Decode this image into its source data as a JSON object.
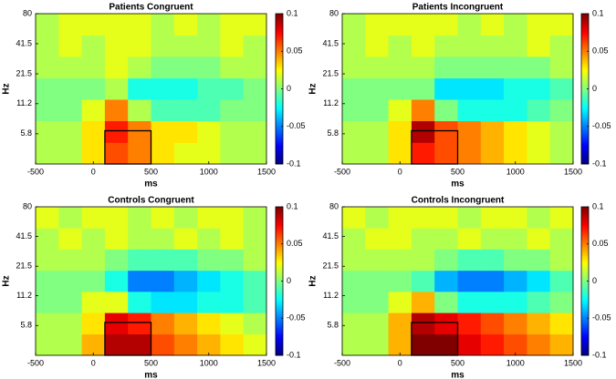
{
  "chart_data": [
    {
      "type": "heatmap",
      "title": "Patients Congruent",
      "xlabel": "ms",
      "ylabel": "Hz",
      "xlim": [
        -500,
        1500
      ],
      "xticks": [
        -500,
        0,
        500,
        1000,
        1500
      ],
      "ylim": [
        3,
        80
      ],
      "yticks": [
        5.8,
        11.2,
        21.5,
        41.5,
        80
      ],
      "yscale": "log",
      "xbins": [
        -500,
        -300,
        -100,
        100,
        300,
        500,
        700,
        900,
        1100,
        1300,
        1500
      ],
      "ybins": [
        3,
        4.8,
        7.7,
        12.3,
        19.6,
        31.4,
        50,
        80
      ],
      "z": [
        [
          0.01,
          0.01,
          0.03,
          0.06,
          0.05,
          0.03,
          0.02,
          0.02,
          0.01,
          0.01
        ],
        [
          0.01,
          0.01,
          0.03,
          0.07,
          0.05,
          0.03,
          0.03,
          0.02,
          0.01,
          0.01
        ],
        [
          0,
          0,
          0.02,
          0.05,
          0.01,
          -0.01,
          -0.01,
          -0.01,
          0,
          0
        ],
        [
          0,
          0,
          0,
          0.01,
          -0.02,
          -0.02,
          -0.02,
          -0.01,
          -0.01,
          0
        ],
        [
          0.01,
          0.01,
          0.01,
          0.02,
          0.01,
          0,
          0,
          0,
          0.01,
          0.01
        ],
        [
          0.01,
          0.02,
          0.01,
          0.02,
          0.02,
          0.01,
          0.01,
          0.01,
          0.02,
          0.01
        ],
        [
          0.01,
          0.02,
          0.02,
          0.02,
          0.02,
          0.01,
          0.02,
          0.01,
          0.02,
          0.02
        ]
      ],
      "clim": [
        -0.1,
        0.1
      ],
      "cticks": [
        -0.1,
        -0.05,
        0,
        0.05,
        0.1
      ],
      "colormap": "jet",
      "box": {
        "x": [
          100,
          500
        ],
        "y": [
          3,
          6.2
        ]
      },
      "box_color": "#000000"
    },
    {
      "type": "heatmap",
      "title": "Patients Incongruent",
      "xlabel": "ms",
      "ylabel": "Hz",
      "xlim": [
        -500,
        1500
      ],
      "xticks": [
        -500,
        0,
        500,
        1000,
        1500
      ],
      "ylim": [
        3,
        80
      ],
      "yticks": [
        5.8,
        11.2,
        21.5,
        41.5,
        80
      ],
      "yscale": "log",
      "xbins": [
        -500,
        -300,
        -100,
        100,
        300,
        500,
        700,
        900,
        1100,
        1300,
        1500
      ],
      "ybins": [
        3,
        4.8,
        7.7,
        12.3,
        19.6,
        31.4,
        50,
        80
      ],
      "z": [
        [
          0.01,
          0.01,
          0.03,
          0.07,
          0.06,
          0.05,
          0.04,
          0.03,
          0.02,
          0.01
        ],
        [
          0.01,
          0.01,
          0.03,
          0.09,
          0.06,
          0.05,
          0.04,
          0.03,
          0.02,
          0.01
        ],
        [
          0,
          0,
          0.02,
          0.05,
          0,
          -0.02,
          -0.02,
          -0.02,
          -0.01,
          0
        ],
        [
          0,
          0,
          0,
          0,
          -0.03,
          -0.03,
          -0.03,
          -0.02,
          -0.02,
          -0.01
        ],
        [
          0.01,
          0.01,
          0.01,
          0.01,
          0,
          0,
          0,
          0,
          0,
          0.01
        ],
        [
          0.01,
          0.02,
          0.01,
          0.02,
          0.01,
          0.01,
          0.01,
          0.01,
          0.02,
          0.01
        ],
        [
          0.01,
          0.02,
          0.02,
          0.02,
          0.02,
          0.01,
          0.02,
          0.01,
          0.02,
          0.02
        ]
      ],
      "clim": [
        -0.1,
        0.1
      ],
      "cticks": [
        -0.1,
        -0.05,
        0,
        0.05,
        0.1
      ],
      "colormap": "jet",
      "box": {
        "x": [
          100,
          500
        ],
        "y": [
          3,
          6.2
        ]
      },
      "box_color": "#000000"
    },
    {
      "type": "heatmap",
      "title": "Controls Congruent",
      "xlabel": "ms",
      "ylabel": "Hz",
      "xlim": [
        -500,
        1500
      ],
      "xticks": [
        -500,
        0,
        500,
        1000,
        1500
      ],
      "ylim": [
        3,
        80
      ],
      "yticks": [
        5.8,
        11.2,
        21.5,
        41.5,
        80
      ],
      "yscale": "log",
      "xbins": [
        -500,
        -300,
        -100,
        100,
        300,
        500,
        700,
        900,
        1100,
        1300,
        1500
      ],
      "ybins": [
        3,
        4.8,
        7.7,
        12.3,
        19.6,
        31.4,
        50,
        80
      ],
      "z": [
        [
          0.01,
          0.01,
          0.04,
          0.09,
          0.09,
          0.06,
          0.05,
          0.04,
          0.03,
          0.02
        ],
        [
          0.01,
          0.01,
          0.03,
          0.08,
          0.07,
          0.05,
          0.04,
          0.03,
          0.02,
          0.01
        ],
        [
          0,
          0,
          0.02,
          0.02,
          -0.02,
          -0.03,
          -0.03,
          -0.02,
          -0.02,
          -0.01
        ],
        [
          0,
          0,
          0,
          -0.02,
          -0.05,
          -0.05,
          -0.04,
          -0.03,
          -0.02,
          -0.01
        ],
        [
          0.01,
          0.01,
          0.01,
          0,
          -0.01,
          -0.01,
          -0.01,
          0,
          0,
          0.01
        ],
        [
          0.01,
          0.02,
          0.01,
          0.02,
          0.01,
          0.01,
          0.02,
          0.01,
          0.02,
          0.01
        ],
        [
          0.02,
          0.01,
          0.02,
          0.02,
          0.01,
          0.02,
          0.01,
          0.02,
          0.02,
          0.01
        ]
      ],
      "clim": [
        -0.1,
        0.1
      ],
      "cticks": [
        -0.1,
        -0.05,
        0,
        0.05,
        0.1
      ],
      "colormap": "jet",
      "box": {
        "x": [
          100,
          500
        ],
        "y": [
          3,
          6.2
        ]
      },
      "box_color": "#000000"
    },
    {
      "type": "heatmap",
      "title": "Controls Incongruent",
      "xlabel": "ms",
      "ylabel": "Hz",
      "xlim": [
        -500,
        1500
      ],
      "xticks": [
        -500,
        0,
        500,
        1000,
        1500
      ],
      "ylim": [
        3,
        80
      ],
      "yticks": [
        5.8,
        11.2,
        21.5,
        41.5,
        80
      ],
      "yscale": "log",
      "xbins": [
        -500,
        -300,
        -100,
        100,
        300,
        500,
        700,
        900,
        1100,
        1300,
        1500
      ],
      "ybins": [
        3,
        4.8,
        7.7,
        12.3,
        19.6,
        31.4,
        50,
        80
      ],
      "z": [
        [
          0.01,
          0.01,
          0.04,
          0.1,
          0.1,
          0.08,
          0.07,
          0.06,
          0.05,
          0.04
        ],
        [
          0.01,
          0.01,
          0.04,
          0.09,
          0.08,
          0.07,
          0.06,
          0.05,
          0.04,
          0.03
        ],
        [
          0,
          0,
          0.02,
          0.04,
          0,
          -0.02,
          -0.02,
          -0.02,
          -0.01,
          0
        ],
        [
          0,
          0,
          0,
          -0.01,
          -0.04,
          -0.05,
          -0.05,
          -0.04,
          -0.03,
          -0.01
        ],
        [
          0.01,
          0.01,
          0.01,
          0.01,
          0,
          -0.01,
          -0.01,
          0,
          0,
          0.01
        ],
        [
          0.01,
          0.02,
          0.02,
          0.01,
          0.01,
          0.02,
          0.01,
          0.01,
          0.02,
          0.01
        ],
        [
          0.02,
          0.01,
          0.02,
          0.02,
          0.02,
          0.01,
          0.02,
          0.02,
          0.01,
          0.02
        ]
      ],
      "clim": [
        -0.1,
        0.1
      ],
      "cticks": [
        -0.1,
        -0.05,
        0,
        0.05,
        0.1
      ],
      "colormap": "jet",
      "box": {
        "x": [
          100,
          500
        ],
        "y": [
          3,
          6.2
        ]
      },
      "box_color": "#000000"
    }
  ]
}
